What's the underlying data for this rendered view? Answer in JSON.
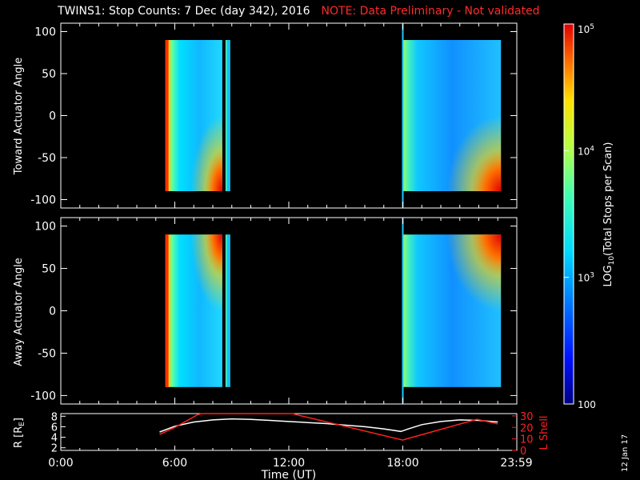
{
  "header": {
    "title": "TWINS1: Stop Counts:  7 Dec (day 342), 2016",
    "note": "NOTE: Data Preliminary - Not validated"
  },
  "side_date": "12 Jan 17",
  "colors": {
    "background": "#000000",
    "note": "#ff2020",
    "lshell": "#ff2020",
    "radius": "#ffffff",
    "marker": "#1ec8ff"
  },
  "chart_data": [
    {
      "type": "heatmap",
      "panel": "top",
      "ylabel": "Toward Actuator Angle",
      "ylim": [
        -110,
        110
      ],
      "yticks": [
        -100,
        -50,
        0,
        50,
        100
      ],
      "xlim_hours": [
        0,
        24
      ],
      "data_blocks": [
        {
          "x_start": "05:30",
          "x_end": "08:30",
          "angle_range": [
            -90,
            90
          ]
        },
        {
          "x_start": "08:40",
          "x_end": "08:55",
          "angle_range": [
            -90,
            90
          ]
        },
        {
          "x_start": "18:00",
          "x_end": "23:10",
          "angle_range": [
            -90,
            90
          ]
        }
      ],
      "vertical_marker": "18:00",
      "description_of_values": "mostly 10^3 (cyan/blue), rising to 10^4-10^5 (orange/red) near the start of each block and toward -90 deg"
    },
    {
      "type": "heatmap",
      "panel": "middle",
      "ylabel": "Away Actuator Angle",
      "ylim": [
        -110,
        110
      ],
      "yticks": [
        -100,
        -50,
        0,
        50,
        100
      ],
      "xlim_hours": [
        0,
        24
      ],
      "data_blocks": [
        {
          "x_start": "05:30",
          "x_end": "08:30",
          "angle_range": [
            -90,
            90
          ]
        },
        {
          "x_start": "08:40",
          "x_end": "08:55",
          "angle_range": [
            -90,
            90
          ]
        },
        {
          "x_start": "18:00",
          "x_end": "23:10",
          "angle_range": [
            -90,
            90
          ]
        }
      ],
      "vertical_marker": "18:00",
      "description_of_values": "mostly 10^3 (cyan/blue), rising to 10^4-10^5 (orange/red) near the start of each block and toward +90 deg"
    },
    {
      "type": "line",
      "panel": "bottom",
      "ylabel_left": "R [R",
      "ylabel_left_sub": "E",
      "ylabel_left_end": "]",
      "ylabel_right": "L Shell",
      "xlabel": "Time (UT)",
      "xticks": [
        "0:00",
        "6:00",
        "12:00",
        "18:00",
        "23:59"
      ],
      "xtick_hours": [
        0,
        6,
        12,
        18,
        23.98
      ],
      "left_yticks": [
        2,
        4,
        6,
        8
      ],
      "left_ylim": [
        1.5,
        8.5
      ],
      "right_yticks": [
        0,
        10,
        20,
        30
      ],
      "right_ylim": [
        0,
        32
      ],
      "series": [
        {
          "axis": "left",
          "hours": [
            5.2,
            6.0,
            7.0,
            8.0,
            9.0,
            10.0,
            11.0,
            12.0,
            13.0,
            14.0,
            15.0,
            16.0,
            17.0,
            17.9,
            18.3,
            19.0,
            20.0,
            21.0,
            22.0,
            23.0
          ],
          "values": [
            5.0,
            6.1,
            6.9,
            7.3,
            7.5,
            7.4,
            7.2,
            7.0,
            6.8,
            6.6,
            6.3,
            6.0,
            5.6,
            5.1,
            5.6,
            6.4,
            7.0,
            7.3,
            7.2,
            6.9
          ]
        },
        {
          "axis": "right",
          "hours": [
            5.2,
            6.0,
            7.2,
            7.4,
            12.2,
            12.4,
            18.0,
            18.2,
            21.9,
            23.0
          ],
          "values": [
            14.0,
            20.0,
            31.0,
            32.0,
            32.0,
            31.0,
            9.0,
            10.0,
            27.0,
            23.0
          ]
        }
      ]
    },
    {
      "type": "heatmap",
      "panel": "colorbar",
      "label_main": "LOG",
      "label_sub": "10",
      "label_rest": "(Total Stops per Scan)",
      "ticks": [
        {
          "value": 100,
          "base": "100",
          "exp": ""
        },
        {
          "value": 1000,
          "base": "10",
          "exp": "3"
        },
        {
          "value": 10000,
          "base": "10",
          "exp": "4"
        },
        {
          "value": 100000,
          "base": "10",
          "exp": "5"
        }
      ],
      "range": [
        100,
        100000
      ],
      "scale": "log"
    }
  ]
}
